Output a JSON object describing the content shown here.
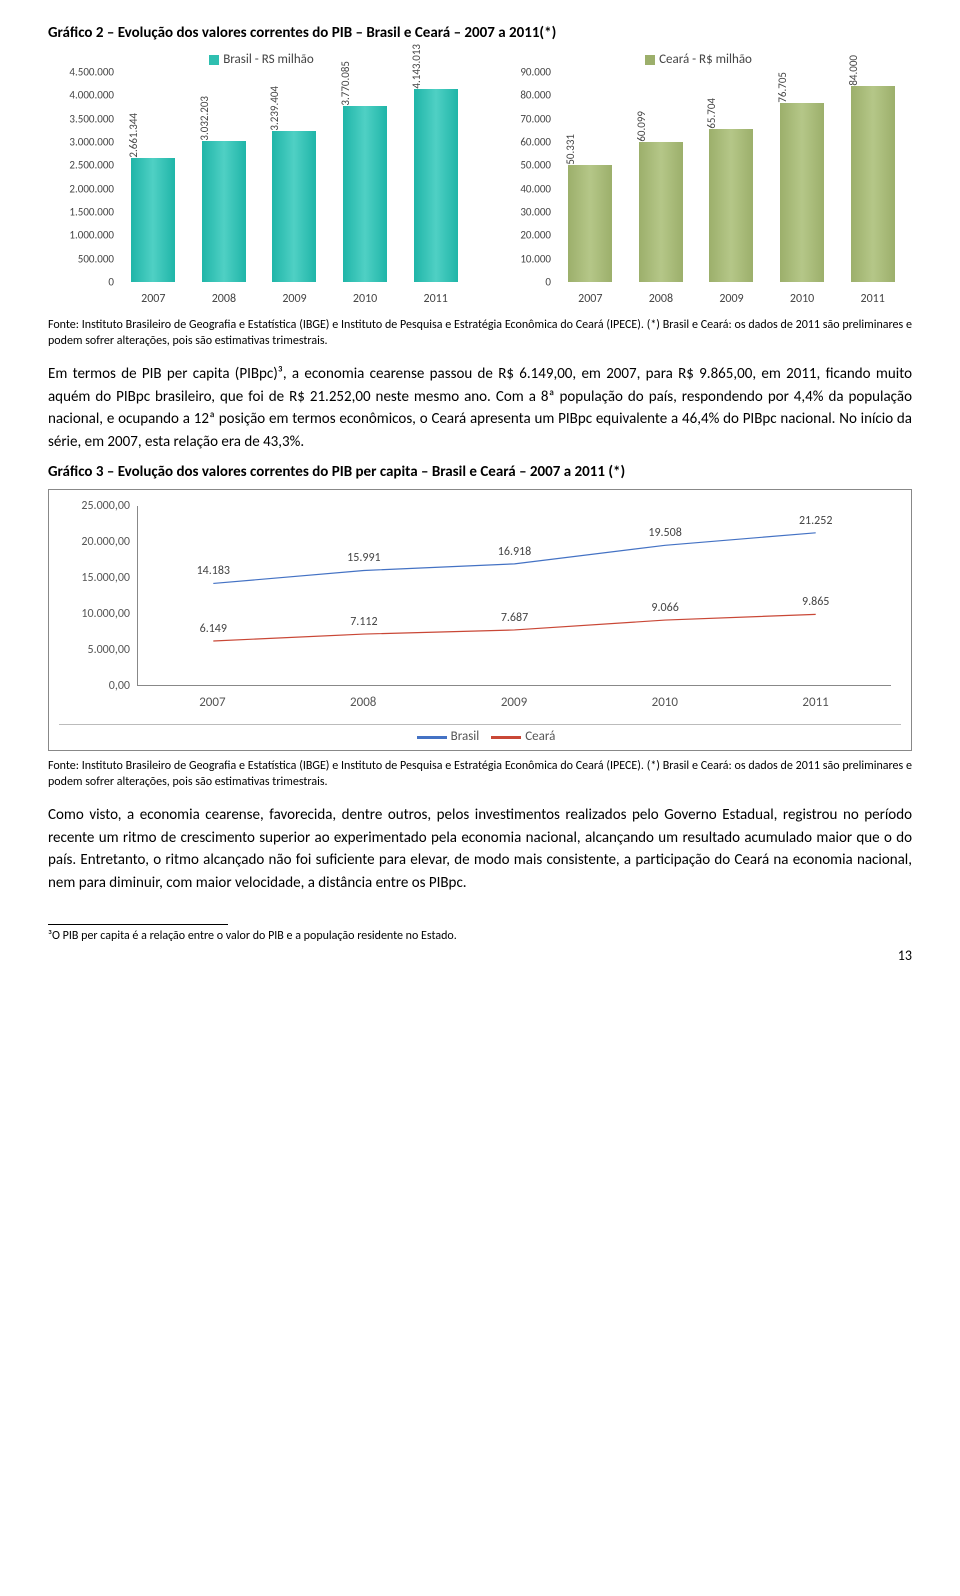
{
  "titles": {
    "grafico2": "Gráfico 2 – Evolução dos valores correntes do PIB – Brasil e Ceará – 2007 a 2011(*)",
    "grafico3": "Gráfico 3 – Evolução dos valores correntes do PIB per capita – Brasil e Ceará – 2007 a 2011 (*)"
  },
  "chart_brasil": {
    "legend": "Brasil - RS milhão",
    "legend_color": "#2fbfb0",
    "categories": [
      "2007",
      "2008",
      "2009",
      "2010",
      "2011"
    ],
    "values": [
      2661344,
      3032203,
      3239404,
      3770085,
      4143013
    ],
    "value_labels": [
      "2.661.344",
      "3.032.203",
      "3.239.404",
      "3.770.085",
      "4.143.013"
    ],
    "ymax": 4500000,
    "ystep": 500000,
    "yticks": [
      "0",
      "500.000",
      "1.000.000",
      "1.500.000",
      "2.000.000",
      "2.500.000",
      "3.000.000",
      "3.500.000",
      "4.000.000",
      "4.500.000"
    ],
    "bar_color_class": "bar-teal"
  },
  "chart_ceara": {
    "legend": "Ceará - R$ milhão",
    "legend_color": "#9caf6b",
    "categories": [
      "2007",
      "2008",
      "2009",
      "2010",
      "2011"
    ],
    "values": [
      50331,
      60099,
      65704,
      76705,
      84000
    ],
    "value_labels": [
      "50.331",
      "60.099",
      "65.704",
      "76.705",
      "84.000"
    ],
    "ymax": 90000,
    "ystep": 10000,
    "yticks": [
      "0",
      "10.000",
      "20.000",
      "30.000",
      "40.000",
      "50.000",
      "60.000",
      "70.000",
      "80.000",
      "90.000"
    ],
    "bar_color_class": "bar-olive"
  },
  "fonte1": "Fonte: Instituto Brasileiro de Geografia e Estatística (IBGE) e Instituto de Pesquisa e Estratégia Econômica do Ceará (IPECE). (*) Brasil e Ceará: os dados de 2011 são preliminares e podem sofrer alterações, pois são estimativas trimestrais.",
  "paragraph1": "Em termos de PIB per capita (PIBpc)³, a economia cearense passou de R$ 6.149,00, em 2007, para R$ 9.865,00, em 2011, ficando muito aquém do PIBpc brasileiro, que foi de R$ 21.252,00 neste mesmo ano. Com a 8ª população do país, respondendo por 4,4% da população nacional, e ocupando a 12ª posição em termos econômicos, o Ceará apresenta um PIBpc equivalente a 46,4% do PIBpc nacional. No início da série, em 2007, esta relação era de 43,3%.",
  "line_chart": {
    "categories": [
      "2007",
      "2008",
      "2009",
      "2010",
      "2011"
    ],
    "ymax": 25000,
    "ystep": 5000,
    "yticks": [
      "0,00",
      "5.000,00",
      "10.000,00",
      "15.000,00",
      "20.000,00",
      "25.000,00"
    ],
    "series": {
      "brasil": {
        "label": "Brasil",
        "color": "#4472c4",
        "values": [
          14183,
          15991,
          16918,
          19508,
          21252
        ],
        "value_labels": [
          "14.183",
          "15.991",
          "16.918",
          "19.508",
          "21.252"
        ]
      },
      "ceara": {
        "label": "Ceará",
        "color": "#c94736",
        "values": [
          6149,
          7112,
          7687,
          9066,
          9865
        ],
        "value_labels": [
          "6.149",
          "7.112",
          "7.687",
          "9.066",
          "9.865"
        ]
      }
    }
  },
  "fonte2": "Fonte: Instituto Brasileiro de Geografia e Estatística (IBGE) e Instituto de Pesquisa e Estratégia Econômica do Ceará (IPECE). (*) Brasil e Ceará: os dados de 2011 são preliminares e podem sofrer alterações, pois são estimativas trimestrais.",
  "paragraph2": "Como visto, a economia cearense, favorecida, dentre outros, pelos investimentos realizados pelo Governo Estadual, registrou no período recente um ritmo de crescimento superior ao experimentado pela economia nacional, alcançando um resultado acumulado maior que o do país. Entretanto, o ritmo alcançado não foi suficiente para elevar, de modo mais consistente, a participação do Ceará na economia nacional, nem para diminuir, com maior velocidade, a distância entre os PIBpc.",
  "footnote": "³O PIB per capita é a relação entre o valor do PIB e a população residente no Estado.",
  "page_number": "13"
}
